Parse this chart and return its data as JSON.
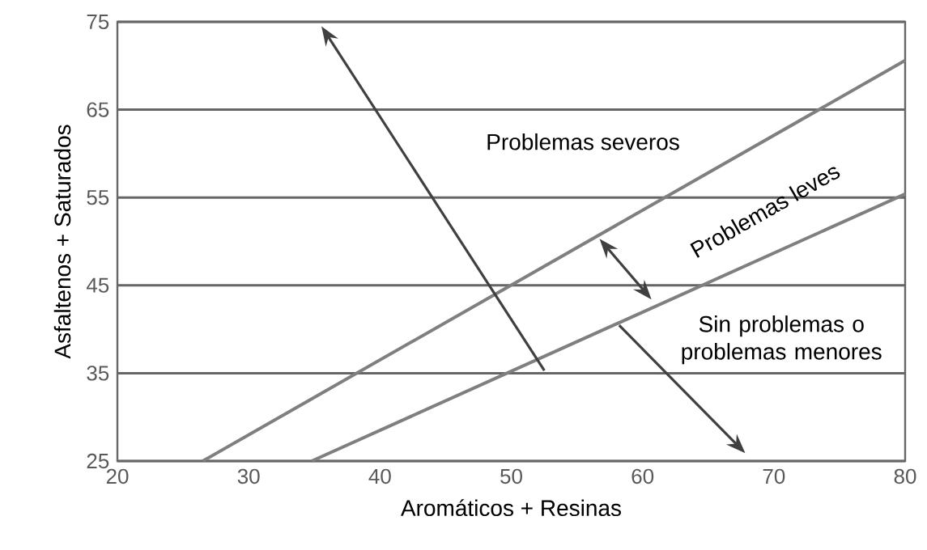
{
  "chart_data": {
    "type": "line",
    "xlabel": "Aromáticos + Resinas",
    "ylabel": "Asfaltenos + Saturados",
    "series": [
      {
        "x": [
          26.5,
          80
        ],
        "values": [
          25,
          70.6
        ],
        "color": "#7f7f7f"
      },
      {
        "x": [
          34.8,
          80
        ],
        "values": [
          25,
          55.4
        ],
        "color": "#7f7f7f"
      }
    ],
    "xlim": [
      20,
      80
    ],
    "ylim": [
      25,
      75
    ],
    "xticks": [
      20,
      30,
      40,
      50,
      60,
      70,
      80
    ],
    "yticks": [
      25,
      35,
      45,
      55,
      65,
      75
    ],
    "grid": "y",
    "annotations": [
      "Problemas severos",
      "Problemas leves",
      "Sin problemas o problemas menores"
    ]
  }
}
